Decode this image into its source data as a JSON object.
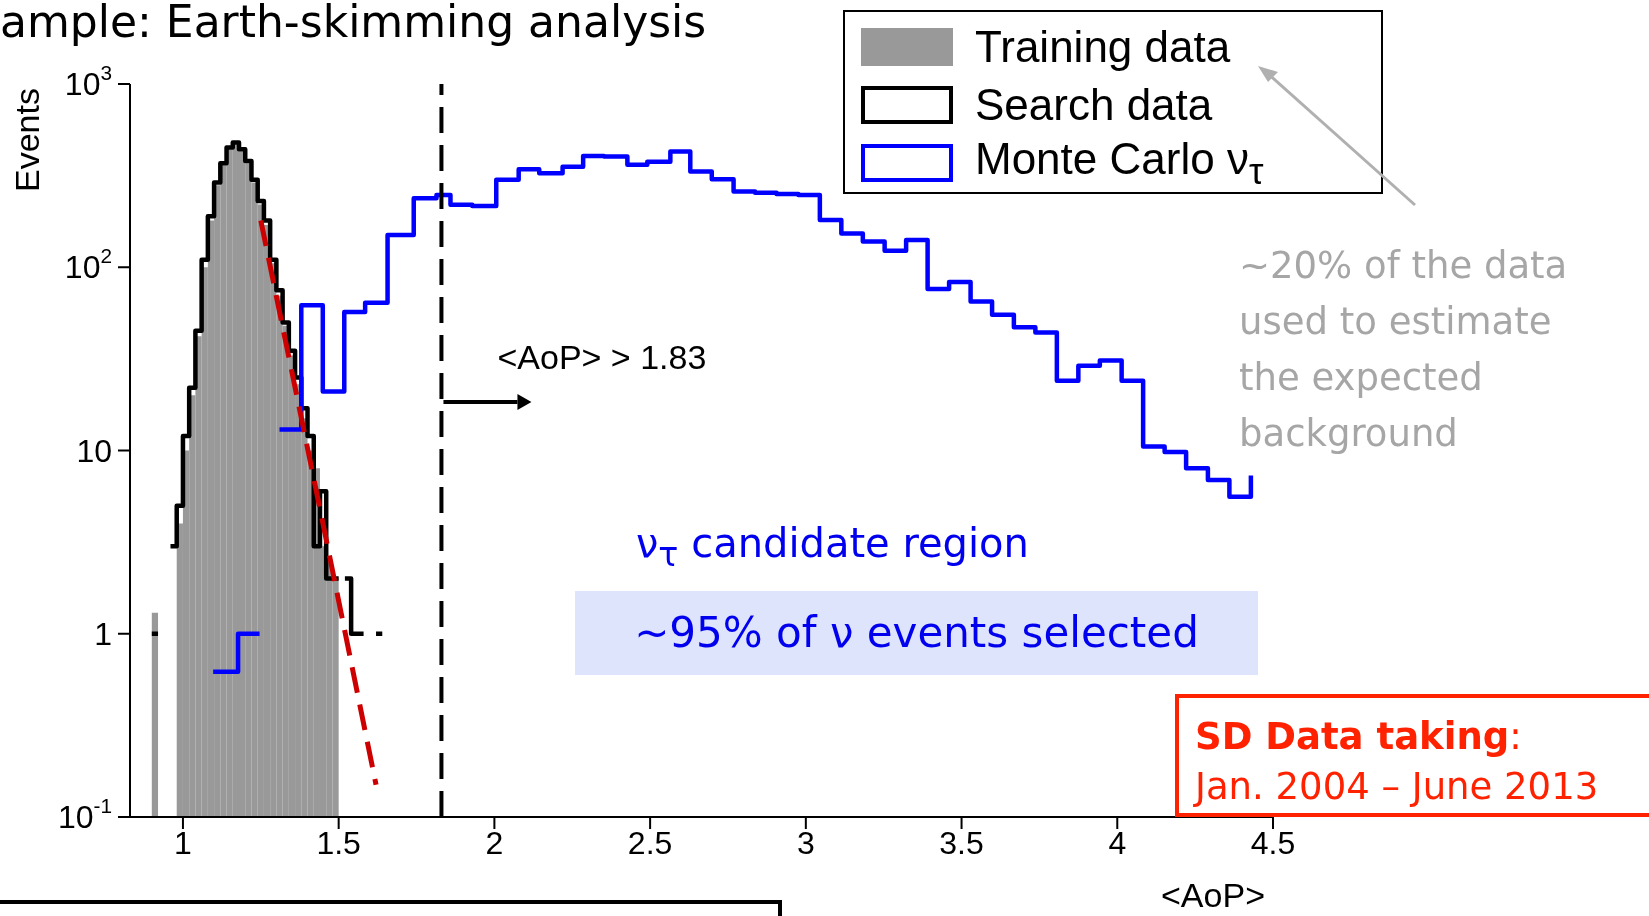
{
  "chart_data": {
    "type": "histogram",
    "title": "ample: Earth-skimming analysis",
    "xlabel": "<AoP>",
    "ylabel": "Events",
    "log": "y",
    "legend": "top right",
    "xlim": [
      0.83,
      4.5
    ],
    "xticks": [
      1,
      1.5,
      2,
      2.5,
      3,
      3.5,
      4,
      4.5
    ],
    "ylim": [
      0.1,
      1000
    ],
    "yticks": [
      {
        "value": 0.1,
        "label": "10$^{-1}$"
      },
      1,
      10,
      {
        "value": 100,
        "label": "10$^{2}$"
      },
      {
        "value": 1000,
        "label": "10$^{3}$"
      }
    ],
    "series": [
      {
        "name": "Training data",
        "color": "#999999",
        "bins": [
          0.9,
          0.92,
          0.94,
          0.96,
          0.98,
          1.0,
          1.02,
          1.04,
          1.06,
          1.08,
          1.1,
          1.12,
          1.14,
          1.16,
          1.18,
          1.2,
          1.22,
          1.24,
          1.26,
          1.28,
          1.3,
          1.32,
          1.34,
          1.36,
          1.38,
          1.4,
          1.42,
          1.44,
          1.46,
          1.48,
          1.5
        ],
        "values": [
          1.3,
          null,
          null,
          null,
          4,
          10,
          20,
          42,
          100,
          180,
          280,
          360,
          440,
          470,
          430,
          370,
          290,
          220,
          170,
          105,
          70,
          48,
          33,
          23,
          15,
          10,
          8,
          3,
          2.5,
          2
        ]
      },
      {
        "name": "Search data",
        "type": "step",
        "color": "#000000",
        "x": [
          0.9,
          0.92,
          0.94,
          0.96,
          0.98,
          1.0,
          1.02,
          1.04,
          1.06,
          1.08,
          1.1,
          1.12,
          1.14,
          1.16,
          1.18,
          1.2,
          1.22,
          1.24,
          1.26,
          1.28,
          1.3,
          1.32,
          1.34,
          1.36,
          1.38,
          1.4,
          1.42,
          1.44,
          1.46,
          1.48,
          1.5,
          1.52,
          1.54,
          1.56,
          1.58,
          1.6,
          1.62,
          1.64
        ],
        "values": [
          1,
          null,
          null,
          3,
          5,
          12,
          22,
          45,
          110,
          190,
          290,
          370,
          450,
          480,
          440,
          380,
          300,
          230,
          180,
          110,
          75,
          50,
          35,
          25,
          17,
          12,
          3,
          6,
          2,
          2,
          null,
          2,
          1,
          1,
          null,
          null,
          1,
          1
        ]
      },
      {
        "name": "Monte Carlo ν$_{τ}$",
        "type": "step",
        "color": "#0000ff",
        "x": [
          1.097,
          1.177,
          1.246,
          1.31,
          1.38,
          1.449,
          1.518,
          1.585,
          1.657,
          1.741,
          1.814,
          1.859,
          1.929,
          2.006,
          2.078,
          2.144,
          2.219,
          2.285,
          2.352,
          2.427,
          2.491,
          2.565,
          2.629,
          2.698,
          2.768,
          2.837,
          2.906,
          2.976,
          3.045,
          3.114,
          3.183,
          3.253,
          3.322,
          3.391,
          3.46,
          3.529,
          3.598,
          3.668,
          3.737,
          3.806,
          3.875,
          3.944,
          4.014,
          4.083,
          4.152,
          4.221,
          4.291,
          4.36,
          4.429
        ],
        "values": [
          0.62,
          1,
          null,
          13,
          62,
          21,
          57,
          64,
          150,
          238,
          248,
          219,
          216,
          300,
          343,
          326,
          354,
          405,
          402,
          362,
          377,
          428,
          333,
          302,
          259,
          255,
          251,
          248,
          181,
          153,
          138,
          123,
          141,
          76,
          83,
          65,
          55,
          47,
          44,
          24,
          29,
          31,
          24,
          10.5,
          9.8,
          8,
          6.9,
          5.6,
          7.3
        ]
      },
      {
        "type": "line",
        "color": "#cc0000",
        "line_style": "dashed",
        "x": [
          1.25,
          1.44,
          1.62
        ],
        "values": [
          180,
          4.8,
          0.15
        ]
      }
    ],
    "ref_lines": [
      {
        "axis": "x",
        "value": 1.83,
        "label": "<AoP> > 1.83",
        "line_style": "dashed",
        "color": "#000000"
      }
    ],
    "annotations": [
      "ν$_{τ}$ candidate region",
      "~95% of ν events selected",
      "~20% of the data used to estimate the expected background",
      "SD Data taking: Jan. 2004 – June 2013"
    ]
  }
}
